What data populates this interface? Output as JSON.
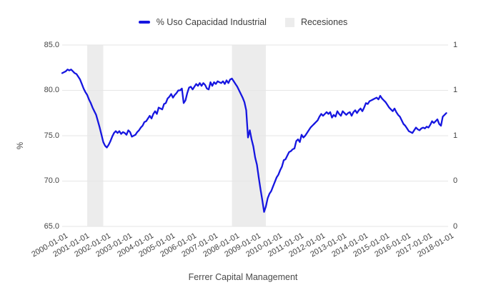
{
  "legend": {
    "series_label": "% Uso Capacidad Industrial",
    "recessions_label": "Recesiones"
  },
  "footer_title": "Ferrer Capital Management",
  "colors": {
    "line": "#1616e0",
    "recession_band": "#ececec",
    "grid": "#e6e6e6",
    "tick_text": "#444444"
  },
  "axes": {
    "y_left": {
      "title": "%",
      "tick_labels": [
        "85.0",
        "80.0",
        "75.0",
        "70.0",
        "65.0"
      ],
      "min": 65,
      "max": 85
    },
    "y_right": {
      "tick_labels": [
        "1",
        "1",
        "1",
        "0",
        "0"
      ],
      "min": 0,
      "max": 1
    },
    "x": {
      "tick_labels": [
        "2000-01-01",
        "2001-01-01",
        "2002-01-01",
        "2003-01-01",
        "2004-01-01",
        "2005-01-01",
        "2006-01-01",
        "2007-01-01",
        "2008-01-01",
        "2009-01-01",
        "2010-01-01",
        "2011-01-01",
        "2012-01-01",
        "2013-01-01",
        "2014-01-01",
        "2015-01-01",
        "2016-01-01",
        "2017-01-01",
        "2018-01-01"
      ]
    }
  },
  "chart_data": {
    "type": "line",
    "title": "",
    "xlabel": "Ferrer Capital Management",
    "ylabel": "%",
    "ylim": [
      65,
      85
    ],
    "y_right_lim": [
      0,
      1
    ],
    "grid": true,
    "legend_position": "top-center",
    "x_start": "2000-01",
    "x_interval": "monthly",
    "series": [
      {
        "name": "% Uso Capacidad Industrial",
        "values": [
          81.9,
          82.0,
          82.1,
          82.3,
          82.2,
          82.3,
          82.1,
          81.9,
          81.8,
          81.5,
          81.2,
          80.7,
          80.2,
          79.8,
          79.5,
          79.0,
          78.6,
          78.1,
          77.7,
          77.3,
          76.6,
          75.9,
          75.1,
          74.3,
          73.9,
          73.7,
          74.0,
          74.4,
          74.9,
          75.3,
          75.5,
          75.3,
          75.5,
          75.2,
          75.4,
          75.3,
          75.1,
          75.6,
          75.4,
          74.9,
          75.0,
          75.1,
          75.4,
          75.6,
          75.9,
          76.1,
          76.5,
          76.6,
          76.9,
          77.2,
          76.9,
          77.4,
          77.7,
          77.4,
          78.1,
          78.0,
          77.9,
          78.5,
          78.6,
          79.1,
          79.3,
          79.6,
          79.2,
          79.5,
          79.7,
          80.0,
          80.0,
          80.2,
          78.6,
          78.9,
          79.7,
          80.3,
          80.4,
          80.1,
          80.4,
          80.7,
          80.5,
          80.8,
          80.5,
          80.8,
          80.6,
          80.2,
          80.1,
          80.9,
          80.5,
          80.9,
          80.7,
          81.0,
          80.9,
          80.8,
          81.0,
          80.7,
          81.1,
          80.8,
          81.2,
          81.3,
          81.0,
          80.7,
          80.4,
          80.0,
          79.6,
          79.2,
          78.7,
          77.8,
          74.8,
          75.6,
          74.6,
          73.8,
          72.6,
          71.8,
          70.4,
          69.1,
          67.9,
          66.6,
          67.2,
          68.1,
          68.6,
          68.9,
          69.4,
          69.9,
          70.4,
          70.7,
          71.2,
          71.6,
          72.3,
          72.4,
          72.8,
          73.2,
          73.3,
          73.5,
          73.6,
          74.4,
          74.6,
          74.3,
          75.1,
          74.8,
          75.0,
          75.3,
          75.6,
          75.9,
          76.1,
          76.3,
          76.5,
          76.7,
          77.1,
          77.4,
          77.2,
          77.4,
          77.6,
          77.4,
          77.6,
          77.0,
          77.3,
          77.1,
          77.7,
          77.4,
          77.2,
          77.7,
          77.5,
          77.3,
          77.5,
          77.6,
          77.2,
          77.6,
          77.8,
          77.5,
          77.8,
          78.0,
          77.7,
          78.1,
          78.6,
          78.5,
          78.8,
          78.9,
          79.0,
          79.1,
          79.2,
          79.0,
          79.4,
          79.1,
          78.9,
          78.7,
          78.4,
          78.1,
          77.9,
          77.7,
          78.0,
          77.6,
          77.3,
          77.1,
          76.7,
          76.3,
          76.1,
          75.8,
          75.5,
          75.4,
          75.3,
          75.6,
          75.9,
          75.7,
          75.6,
          75.8,
          75.9,
          75.8,
          76.0,
          75.9,
          76.2,
          76.6,
          76.4,
          76.6,
          76.8,
          76.3,
          76.1,
          77.1,
          77.3,
          77.5
        ]
      }
    ],
    "recessions": [
      {
        "start": "2001-03",
        "end": "2001-12"
      },
      {
        "start": "2007-12",
        "end": "2009-07"
      }
    ]
  }
}
